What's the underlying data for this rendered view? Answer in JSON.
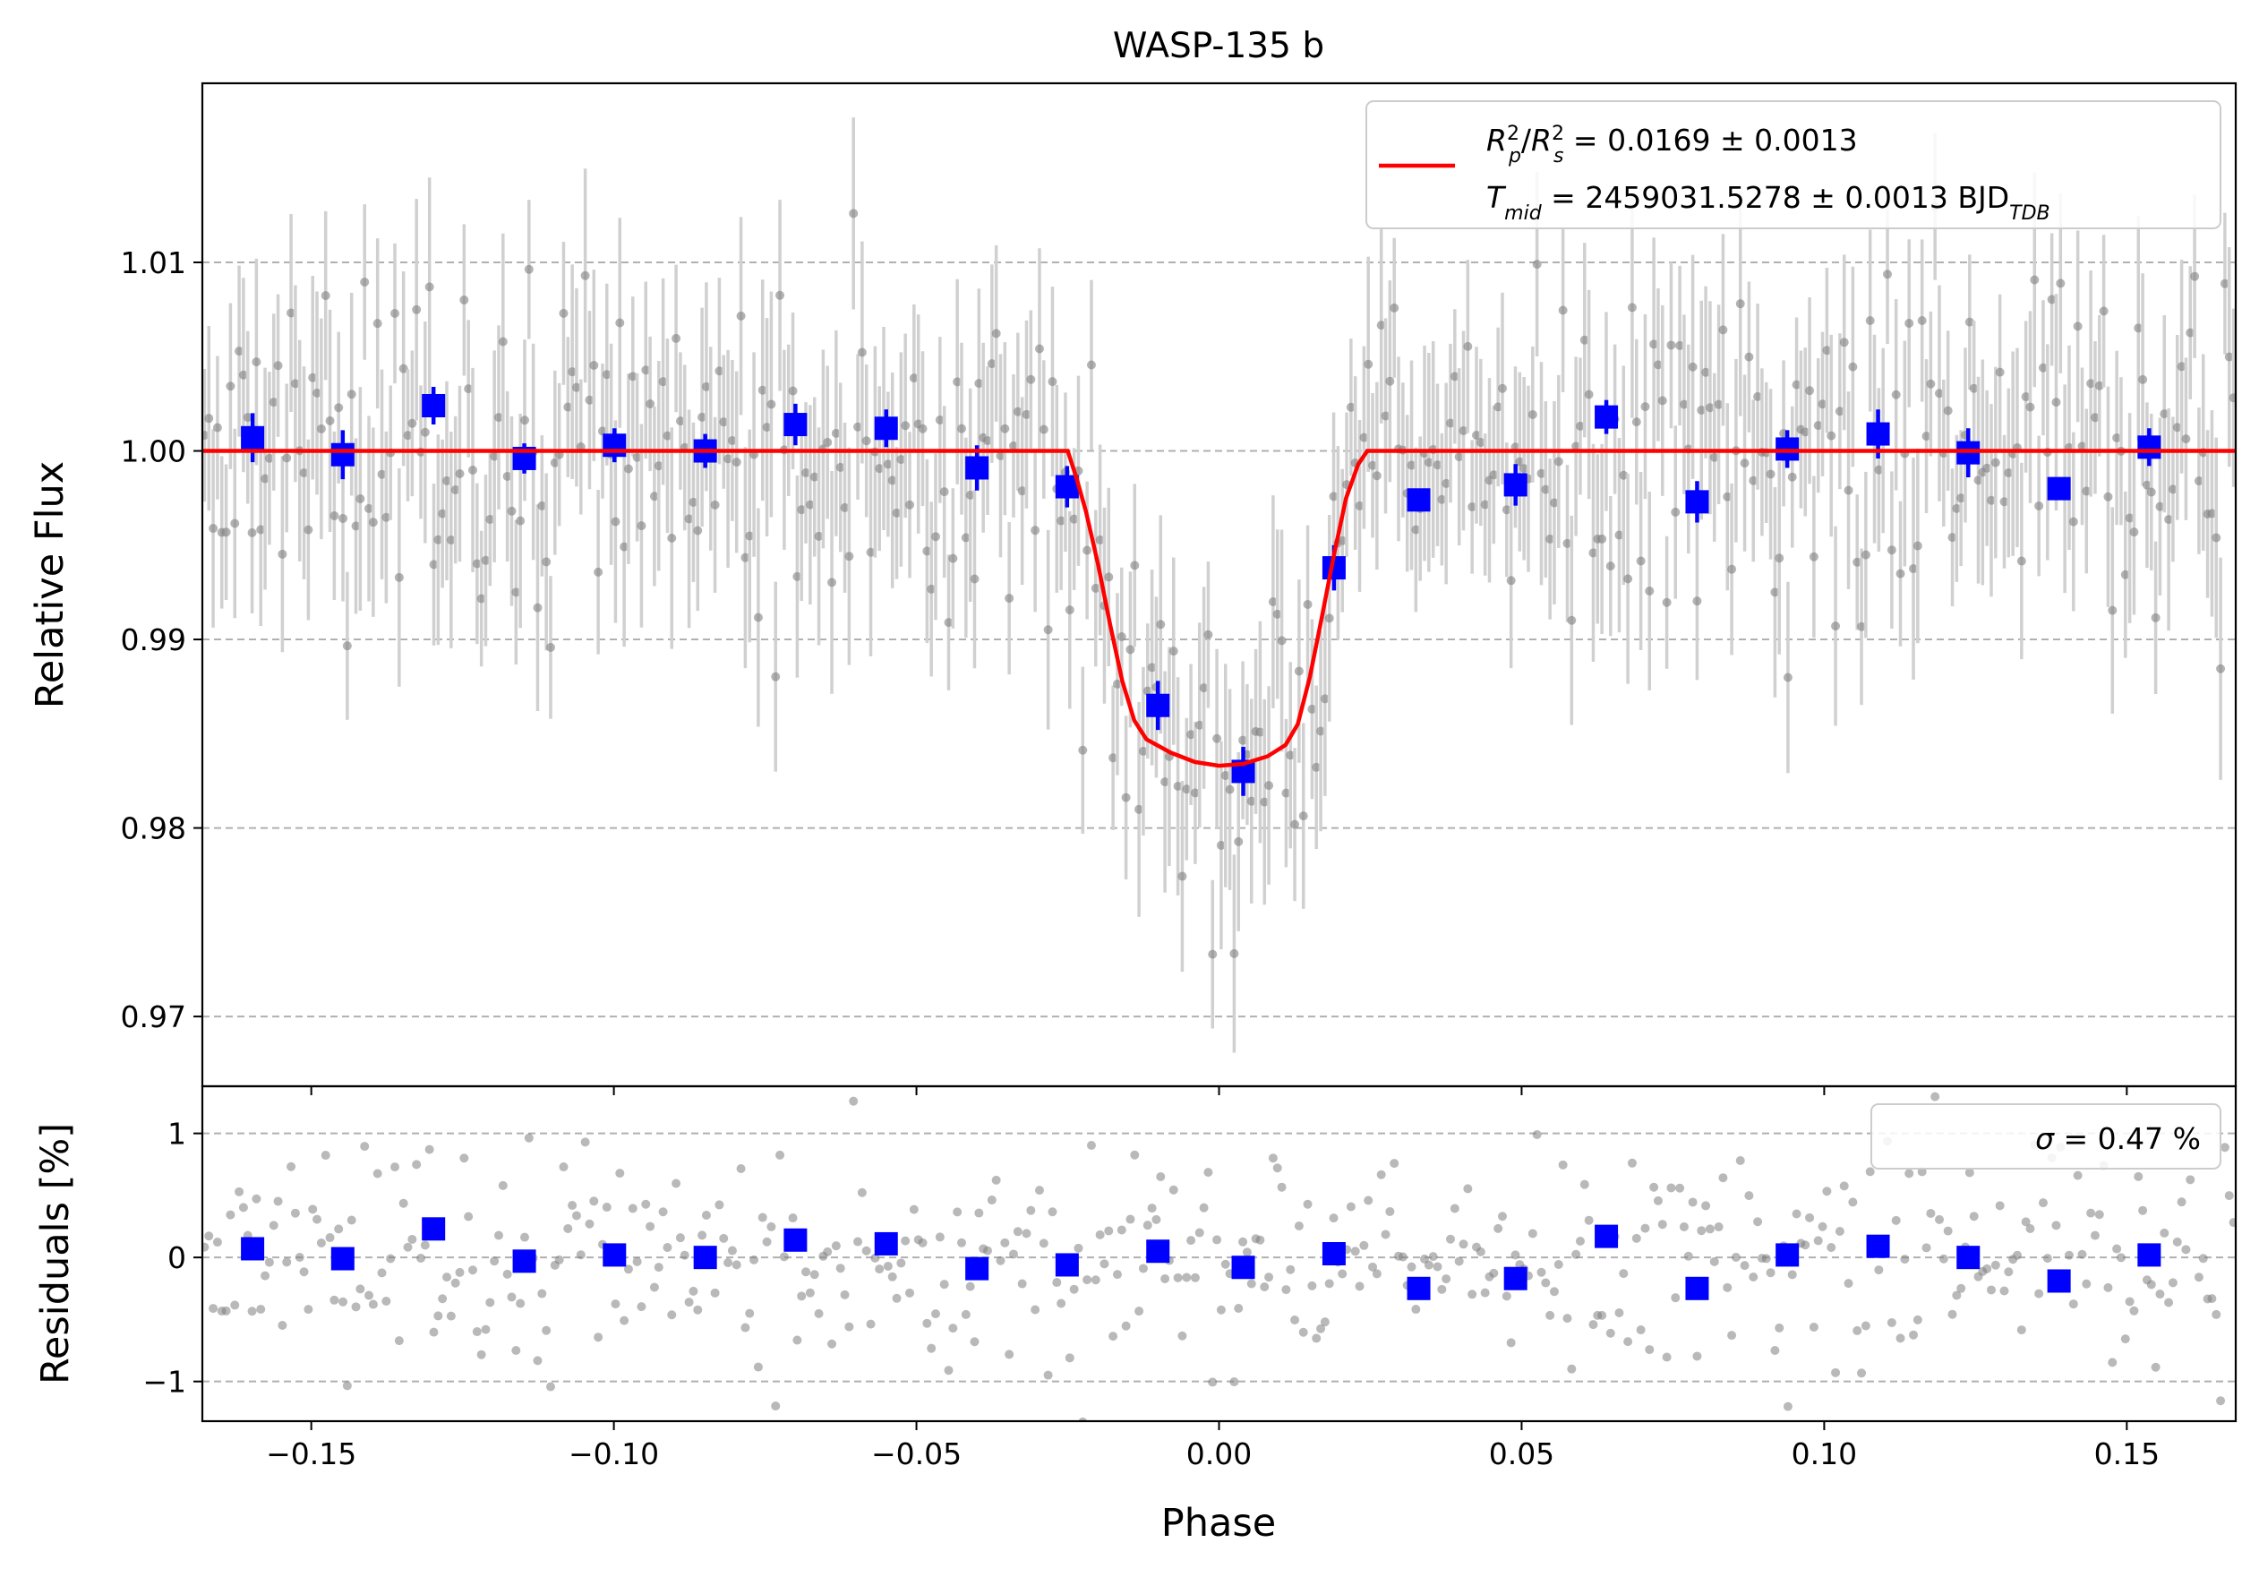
{
  "chart_data": [
    {
      "type": "scatter",
      "panel": "main",
      "title": "WASP-135 b",
      "xlabel": "",
      "ylabel": "Relative Flux",
      "xlim": [
        -0.168,
        0.168
      ],
      "ylim": [
        0.9663,
        1.0195
      ],
      "xticks": [
        "−0.15",
        "−0.10",
        "−0.05",
        "0.00",
        "0.05",
        "0.10",
        "0.15"
      ],
      "xtick_values": [
        -0.15,
        -0.1,
        -0.05,
        0.0,
        0.05,
        0.1,
        0.15
      ],
      "yticks": [
        "0.97",
        "0.98",
        "0.99",
        "1.00",
        "1.01"
      ],
      "ytick_values": [
        0.97,
        0.98,
        0.99,
        1.0,
        1.01
      ],
      "grid": "horizontal dashed",
      "legend_position": "upper-right",
      "legend": {
        "line1_main": "R",
        "line1_full": "R_p^2/R_s^2 = 0.0169 ± 0.0013",
        "rp_value": " = 0.0169 ± 0.0013",
        "line2_prefix": "T",
        "line2_sub": "mid",
        "line2_value": " = 2459031.5278 ± 0.0013 BJD",
        "line2_unit_sub": "TDB"
      },
      "binned": {
        "x": [
          -0.1597,
          -0.1448,
          -0.1298,
          -0.1148,
          -0.0999,
          -0.0849,
          -0.07,
          -0.055,
          -0.04,
          -0.0251,
          -0.0101,
          0.004,
          0.019,
          0.033,
          0.049,
          0.064,
          0.079,
          0.0939,
          0.1089,
          0.1238,
          0.1388,
          0.1537
        ],
        "y": [
          1.0007,
          0.9998,
          1.0024,
          0.9996,
          1.0003,
          1.0,
          1.0014,
          1.0012,
          0.9991,
          0.9981,
          0.9865,
          0.983,
          0.9938,
          0.9974,
          0.9982,
          1.0018,
          0.9973,
          1.0001,
          1.0009,
          0.9999,
          0.998,
          1.0002
        ],
        "yerr": [
          0.0013,
          0.0013,
          0.001,
          0.0008,
          0.0009,
          0.0009,
          0.0011,
          0.001,
          0.0012,
          0.0011,
          0.0013,
          0.0013,
          0.0012,
          0.0006,
          0.0011,
          0.0009,
          0.0011,
          0.001,
          0.0013,
          0.0013,
          0.0006,
          0.001
        ],
        "color": "#0000ff"
      },
      "raw_color": "#808080",
      "raw_errbar_color": "#d0d0d0",
      "model": {
        "color": "#ff0000",
        "x": [
          -0.168,
          -0.025,
          -0.0235,
          -0.022,
          -0.02,
          -0.018,
          -0.016,
          -0.014,
          -0.012,
          -0.008,
          -0.004,
          0.0,
          0.004,
          0.008,
          0.011,
          0.013,
          0.015,
          0.017,
          0.019,
          0.021,
          0.023,
          0.0245,
          0.168
        ],
        "y": [
          1.0,
          1.0,
          0.9985,
          0.9968,
          0.994,
          0.9908,
          0.9878,
          0.9857,
          0.9847,
          0.984,
          0.9835,
          0.9833,
          0.9834,
          0.9838,
          0.9844,
          0.9855,
          0.988,
          0.9912,
          0.9945,
          0.9975,
          0.9993,
          1.0,
          1.0
        ]
      }
    },
    {
      "type": "scatter",
      "panel": "residuals",
      "xlabel": "Phase",
      "ylabel": "Residuals [%]",
      "xlim": [
        -0.168,
        0.168
      ],
      "ylim": [
        -1.32,
        1.38
      ],
      "yticks": [
        "−1",
        "0",
        "1"
      ],
      "ytick_values": [
        -1,
        0,
        1
      ],
      "grid": "horizontal dashed",
      "legend_position": "upper-right",
      "legend": {
        "sigma_symbol": "σ",
        "sigma_value": " = 0.47 %"
      },
      "binned": {
        "x": [
          -0.1597,
          -0.1448,
          -0.1298,
          -0.1148,
          -0.0999,
          -0.0849,
          -0.07,
          -0.055,
          -0.04,
          -0.0251,
          -0.0101,
          0.004,
          0.019,
          0.033,
          0.049,
          0.064,
          0.079,
          0.0939,
          0.1089,
          0.1238,
          0.1388,
          0.1537
        ],
        "y": [
          0.07,
          -0.01,
          0.23,
          -0.03,
          0.02,
          0.0,
          0.14,
          0.11,
          -0.09,
          -0.06,
          0.05,
          -0.08,
          0.03,
          -0.25,
          -0.17,
          0.17,
          -0.25,
          0.02,
          0.09,
          0.0,
          -0.19,
          0.02
        ],
        "color": "#0000ff"
      }
    }
  ]
}
